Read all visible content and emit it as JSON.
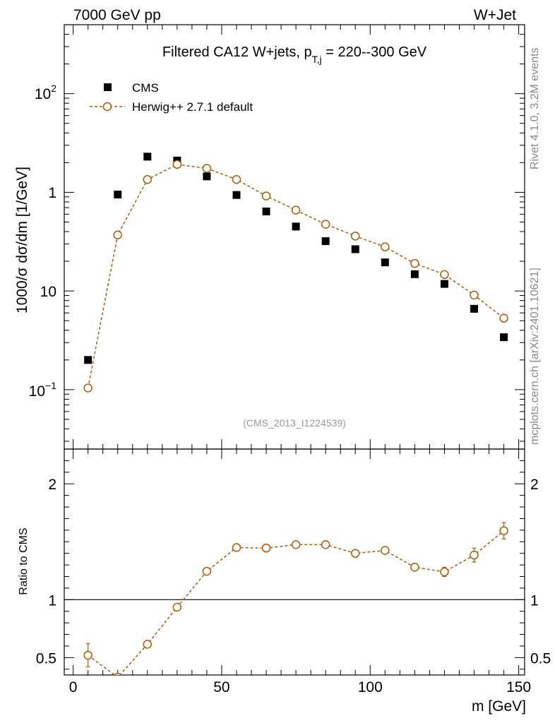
{
  "header": {
    "left": "7000 GeV pp",
    "right": "W+Jet"
  },
  "side": {
    "rivet": "Rivet 4.1.0,  3.2M events",
    "mcplots": "mcplots.cern.ch [arXiv:2401.10621]"
  },
  "chart_data": [
    {
      "type": "scatter",
      "title_main": "Filtered CA12 W+jets, p",
      "title_sub": "T,j",
      "title_rest": " = 220--300 GeV",
      "ylabel": "1000/σ  dσ/dm [1/GeV]",
      "yscale": "log",
      "ylim": [
        0.025,
        500
      ],
      "xlim": [
        -3,
        152
      ],
      "ytick_labels": [
        "10",
        "1",
        "10"
      ],
      "ytick_exponents": [
        "2",
        "",
        "−1"
      ],
      "watermark": "(CMS_2013_I1224539)",
      "legend": {
        "position": "top-left",
        "entries": [
          "CMS",
          "Herwig++ 2.7.1 default"
        ]
      },
      "series": [
        {
          "name": "CMS",
          "marker": "filled-square",
          "color": "#000000",
          "x": [
            5,
            15,
            25,
            35,
            45,
            55,
            65,
            75,
            85,
            95,
            105,
            115,
            125,
            135,
            145
          ],
          "y": [
            0.2,
            9.5,
            23,
            21,
            14.5,
            9.4,
            6.4,
            4.5,
            3.2,
            2.65,
            1.95,
            1.48,
            1.18,
            0.66,
            0.34
          ]
        },
        {
          "name": "Herwig++ 2.7.1 default",
          "marker": "open-circle-dashed-line",
          "color": "#b35900",
          "x": [
            5,
            15,
            25,
            35,
            45,
            55,
            65,
            75,
            85,
            95,
            105,
            115,
            125,
            135,
            145
          ],
          "y": [
            0.104,
            3.7,
            13.5,
            19.2,
            17.5,
            13.5,
            9.2,
            6.6,
            4.75,
            3.6,
            2.8,
            1.9,
            1.47,
            0.91,
            0.53
          ],
          "yerr": [
            0.016,
            0.05,
            0.1,
            0.1,
            0.1,
            0.08,
            0.06,
            0.04,
            0.04,
            0.03,
            0.03,
            0.02,
            0.02,
            0.015,
            0.01
          ]
        }
      ]
    },
    {
      "type": "line",
      "ylabel": "Ratio to CMS",
      "xlabel": "m [GeV]",
      "xlim": [
        -3,
        152
      ],
      "ylim": [
        0.35,
        2.3
      ],
      "xticks": [
        0,
        50,
        100,
        150
      ],
      "xtick_labels": [
        "0",
        "50",
        "100",
        "150"
      ],
      "yticks": [
        0.5,
        1,
        2
      ],
      "ytick_labels": [
        "0.5",
        "1",
        "2"
      ],
      "reference_line": 1,
      "series": [
        {
          "name": "Herwig++ 2.7.1 default",
          "color": "#b35900",
          "x": [
            5,
            15,
            25,
            35,
            45,
            55,
            65,
            75,
            85,
            95,
            105,
            115,
            125,
            135,
            145
          ],
          "y": [
            0.52,
            0.33,
            0.615,
            0.935,
            1.245,
            1.45,
            1.445,
            1.475,
            1.475,
            1.4,
            1.425,
            1.28,
            1.24,
            1.385,
            1.595
          ],
          "yerr": [
            0.1,
            0.02,
            0.015,
            0.01,
            0.015,
            0.02,
            0.02,
            0.02,
            0.02,
            0.02,
            0.025,
            0.03,
            0.04,
            0.06,
            0.07
          ]
        }
      ]
    }
  ]
}
